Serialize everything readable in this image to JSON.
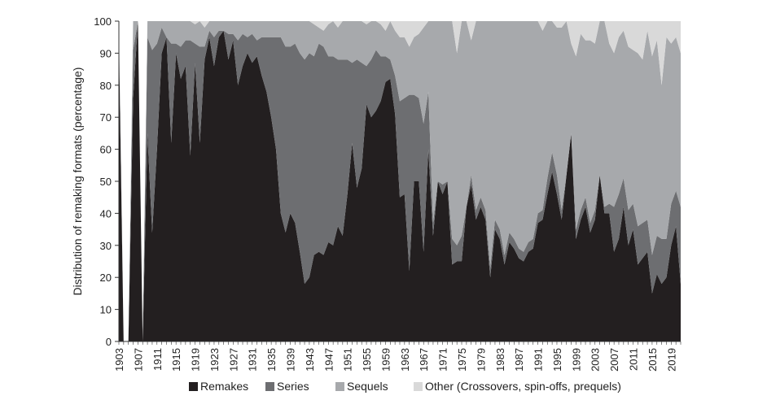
{
  "chart_data": {
    "type": "area",
    "stacked": true,
    "ylabel": "Distribution of remaking formats (percentage)",
    "xlabel": "",
    "xlim": [
      1903,
      2021
    ],
    "ylim": [
      0,
      100
    ],
    "yticks": [
      0,
      10,
      20,
      30,
      40,
      50,
      60,
      70,
      80,
      90,
      100
    ],
    "xticks": [
      "1903",
      "1907",
      "1911",
      "1915",
      "1919",
      "1923",
      "1927",
      "1931",
      "1935",
      "1939",
      "1943",
      "1947",
      "1951",
      "1955",
      "1959",
      "1963",
      "1967",
      "1971",
      "1975",
      "1979",
      "1983",
      "1987",
      "1991",
      "1995",
      "1999",
      "2003",
      "2007",
      "2011",
      "2015",
      "2019"
    ],
    "grid": false,
    "legend_position": "bottom",
    "x": [
      1903,
      1904,
      1905,
      1906,
      1907,
      1908,
      1909,
      1910,
      1911,
      1912,
      1913,
      1914,
      1915,
      1916,
      1917,
      1918,
      1919,
      1920,
      1921,
      1922,
      1923,
      1924,
      1925,
      1926,
      1927,
      1928,
      1929,
      1930,
      1931,
      1932,
      1933,
      1934,
      1935,
      1936,
      1937,
      1938,
      1939,
      1940,
      1941,
      1942,
      1943,
      1944,
      1945,
      1946,
      1947,
      1948,
      1949,
      1950,
      1951,
      1952,
      1953,
      1954,
      1955,
      1956,
      1957,
      1958,
      1959,
      1960,
      1961,
      1962,
      1963,
      1964,
      1965,
      1966,
      1967,
      1968,
      1969,
      1970,
      1971,
      1972,
      1973,
      1974,
      1975,
      1976,
      1977,
      1978,
      1979,
      1980,
      1981,
      1982,
      1983,
      1984,
      1985,
      1986,
      1987,
      1988,
      1989,
      1990,
      1991,
      1992,
      1993,
      1994,
      1995,
      1996,
      1997,
      1998,
      1999,
      2000,
      2001,
      2002,
      2003,
      2004,
      2005,
      2006,
      2007,
      2008,
      2009,
      2010,
      2011,
      2012,
      2013,
      2014,
      2015,
      2016,
      2017,
      2018,
      2019,
      2020,
      2021
    ],
    "series": [
      {
        "name": "Remakes",
        "color": "#231f20",
        "values": [
          96,
          0,
          0,
          76,
          100,
          0,
          65,
          34,
          60,
          90,
          95,
          62,
          90,
          82,
          86,
          58,
          87,
          62,
          88,
          95,
          86,
          95,
          97,
          88,
          94,
          80,
          86,
          90,
          87,
          89,
          83,
          78,
          70,
          60,
          40,
          34,
          40,
          37,
          28,
          18,
          20,
          27,
          28,
          27,
          31,
          30,
          36,
          33,
          46,
          62,
          48,
          54,
          74,
          70,
          72,
          75,
          81,
          82,
          71,
          45,
          46,
          22,
          50,
          50,
          28,
          60,
          33,
          50,
          46,
          50,
          24,
          25,
          25,
          42,
          49,
          38,
          42,
          38,
          20,
          35,
          32,
          24,
          31,
          29,
          26,
          25,
          28,
          29,
          37,
          38,
          46,
          53,
          46,
          38,
          52,
          65,
          32,
          38,
          42,
          34,
          38,
          52,
          40,
          40,
          28,
          32,
          42,
          30,
          35,
          24,
          26,
          28,
          15,
          21,
          18,
          20,
          30,
          36,
          18
        ]
      },
      {
        "name": "Series",
        "color": "#6d6e71",
        "values": [
          0,
          0,
          0,
          15,
          0,
          0,
          30,
          57,
          33,
          8,
          0,
          31,
          3,
          10,
          8,
          36,
          6,
          30,
          4,
          2,
          9,
          2,
          0,
          8,
          2,
          14,
          10,
          5,
          9,
          5,
          12,
          17,
          25,
          35,
          55,
          58,
          52,
          56,
          62,
          70,
          70,
          62,
          65,
          65,
          58,
          59,
          52,
          55,
          42,
          25,
          40,
          33,
          12,
          18,
          19,
          14,
          8,
          6,
          12,
          30,
          30,
          55,
          27,
          26,
          40,
          18,
          4,
          0,
          3,
          0,
          8,
          5,
          8,
          0,
          3,
          3,
          3,
          3,
          3,
          3,
          3,
          3,
          3,
          3,
          3,
          3,
          3,
          3,
          3,
          3,
          5,
          6,
          6,
          3,
          0,
          0,
          3,
          3,
          3,
          3,
          3,
          0,
          2,
          3,
          14,
          14,
          9,
          11,
          8,
          12,
          11,
          10,
          12,
          12,
          14,
          12,
          13,
          11,
          24
        ]
      },
      {
        "name": "Sequels",
        "color": "#a7a9ac",
        "values": [
          4,
          0,
          0,
          9,
          0,
          0,
          5,
          9,
          7,
          2,
          5,
          7,
          7,
          8,
          6,
          6,
          6,
          8,
          6,
          3,
          5,
          3,
          3,
          4,
          4,
          6,
          4,
          5,
          4,
          6,
          5,
          5,
          5,
          5,
          5,
          8,
          8,
          7,
          10,
          12,
          10,
          10,
          5,
          5,
          10,
          11,
          10,
          12,
          12,
          13,
          12,
          13,
          13,
          12,
          9,
          10,
          8,
          12,
          14,
          20,
          19,
          15,
          18,
          20,
          30,
          22,
          63,
          50,
          51,
          50,
          68,
          60,
          67,
          58,
          42,
          59,
          55,
          59,
          77,
          62,
          65,
          73,
          66,
          68,
          71,
          72,
          69,
          68,
          60,
          56,
          49,
          41,
          46,
          57,
          48,
          28,
          54,
          55,
          49,
          57,
          52,
          48,
          58,
          50,
          48,
          49,
          46,
          51,
          48,
          54,
          51,
          59,
          62,
          61,
          48,
          63,
          50,
          48,
          48
        ]
      },
      {
        "name": "Other (Crossovers, spin-offs, prequels)",
        "color": "#d9d9d9",
        "values": [
          0,
          0,
          0,
          0,
          0,
          0,
          0,
          0,
          0,
          0,
          0,
          0,
          0,
          0,
          0,
          0,
          1,
          0,
          2,
          0,
          0,
          0,
          0,
          0,
          0,
          0,
          0,
          0,
          0,
          0,
          0,
          0,
          0,
          0,
          0,
          0,
          0,
          0,
          0,
          0,
          0,
          1,
          2,
          3,
          1,
          0,
          2,
          0,
          0,
          0,
          0,
          0,
          1,
          0,
          0,
          1,
          3,
          0,
          3,
          5,
          5,
          8,
          5,
          4,
          2,
          0,
          0,
          0,
          0,
          0,
          0,
          10,
          0,
          0,
          6,
          0,
          0,
          0,
          0,
          0,
          0,
          0,
          0,
          0,
          0,
          0,
          0,
          0,
          0,
          3,
          0,
          0,
          2,
          2,
          0,
          7,
          11,
          4,
          6,
          6,
          7,
          0,
          0,
          7,
          10,
          5,
          3,
          8,
          9,
          10,
          12,
          3,
          11,
          6,
          20,
          5,
          7,
          5,
          10
        ]
      }
    ]
  }
}
